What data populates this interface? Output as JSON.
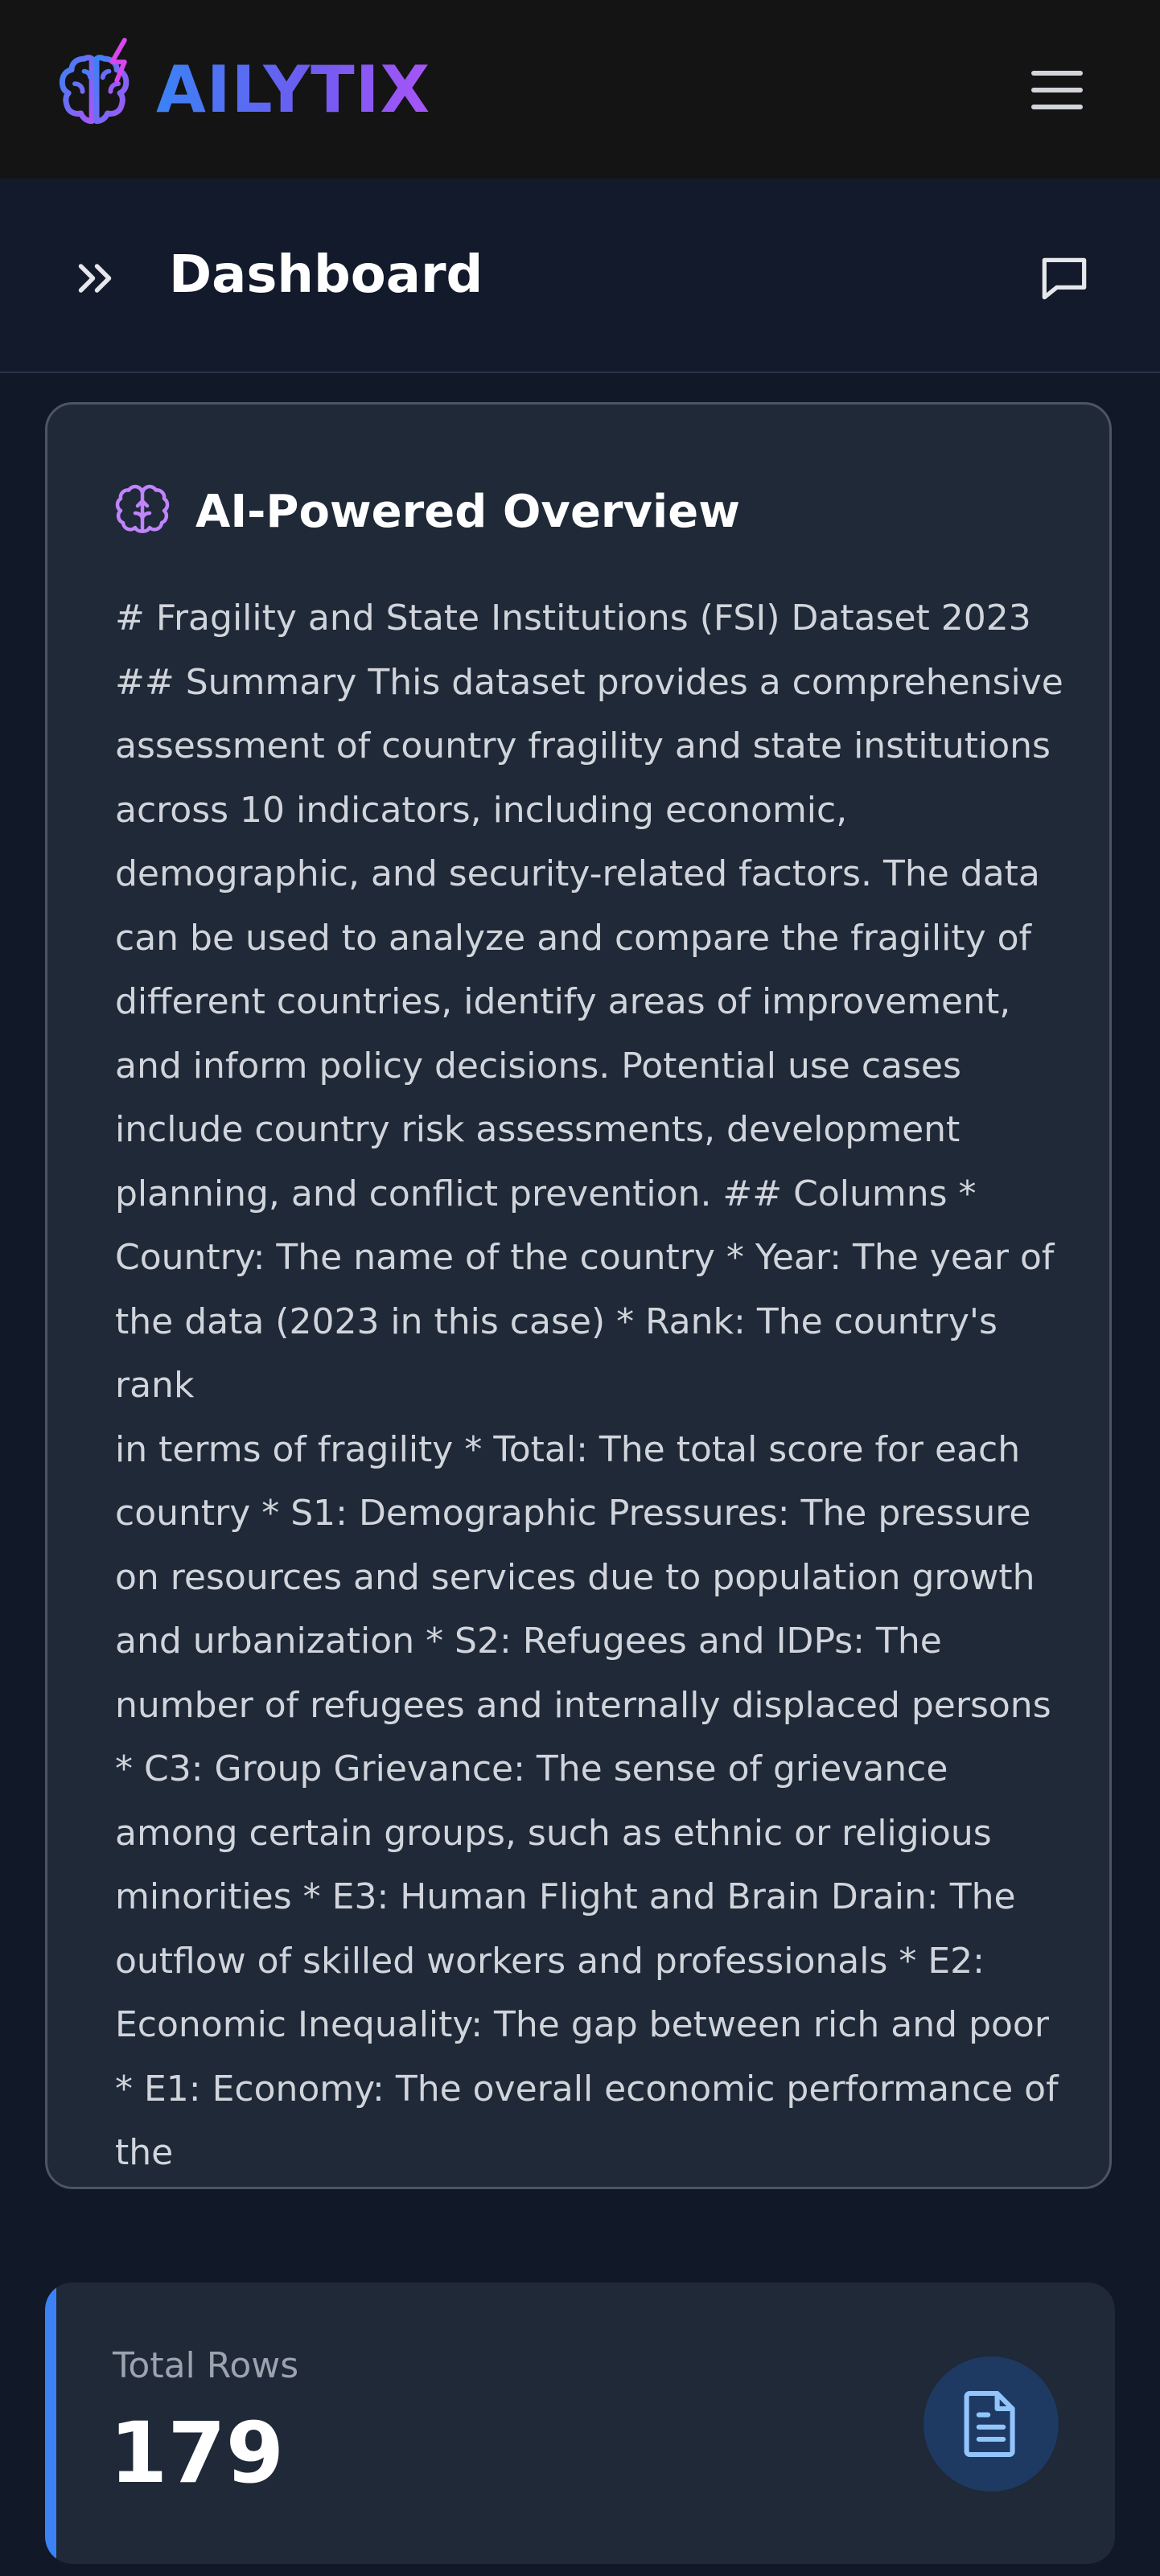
{
  "app": {
    "brand": "AILYTIX",
    "logo_icon": "brain-lightning-icon",
    "menu_icon": "hamburger-menu-icon"
  },
  "header": {
    "title": "Dashboard",
    "expand_icon": "chevrons-right-icon",
    "chat_icon": "chat-bubble-icon"
  },
  "overview": {
    "icon": "brain-icon",
    "title": "AI-Powered Overview",
    "lines": [
      "# Fragility and State Institutions (FSI) Dataset 2023",
      "## Summary This dataset provides a comprehensive",
      "assessment of country fragility and state institutions",
      "across 10 indicators, including economic,",
      "demographic, and security-related factors. The data",
      "can be used to analyze and compare the fragility of",
      "different countries, identify areas of improvement,",
      "and inform policy decisions. Potential use cases",
      "include country risk assessments, development",
      "planning, and conflict prevention. ## Columns *",
      "Country: The name of the country * Year: The year of",
      "the data (2023 in this case) * Rank: The country's rank",
      "in terms of fragility * Total: The total score for each",
      "country * S1: Demographic Pressures: The pressure",
      "on resources and services due to population growth",
      "and urbanization * S2: Refugees and IDPs: The",
      "number of refugees and internally displaced persons",
      "* C3: Group Grievance: The sense of grievance",
      "among certain groups, such as ethnic or religious",
      "minorities * E3: Human Flight and Brain Drain: The",
      "outflow of skilled workers and professionals * E2:",
      "Economic Inequality: The gap between rich and poor",
      "* E1: Economy: The overall economic performance of",
      "the"
    ]
  },
  "stats": {
    "total_rows_label": "Total Rows",
    "total_rows_value": "179",
    "icon": "document-icon",
    "accent": "#3b82f6"
  }
}
